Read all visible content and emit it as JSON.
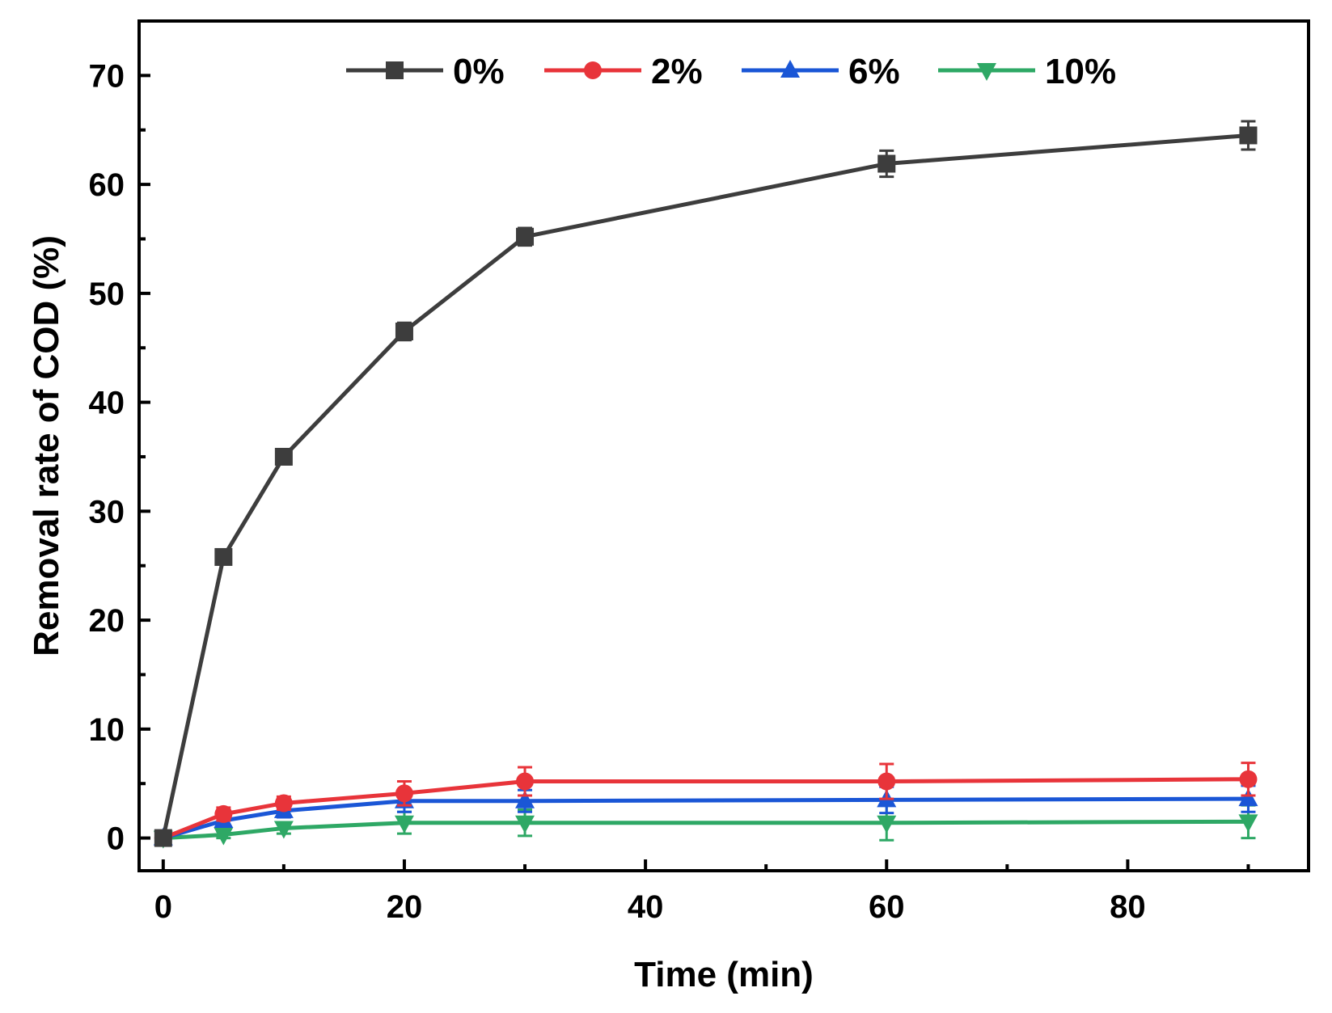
{
  "chart_data": {
    "type": "line",
    "title": "",
    "xlabel": "Time (min)",
    "ylabel": "Removal rate of COD (%)",
    "xlim": [
      -2,
      95
    ],
    "ylim": [
      -3,
      75
    ],
    "x_ticks": [
      0,
      20,
      40,
      60,
      80
    ],
    "y_ticks": [
      0,
      10,
      20,
      30,
      40,
      50,
      60,
      70
    ],
    "grid": false,
    "legend_position": "top",
    "x": [
      0,
      5,
      10,
      20,
      30,
      60,
      90
    ],
    "series": [
      {
        "name": "0%",
        "color": "#3d3d3d",
        "marker": "square",
        "values": [
          0,
          25.8,
          35.0,
          46.5,
          55.2,
          61.9,
          64.5
        ],
        "errors": [
          0.3,
          0.6,
          0.7,
          0.8,
          0.8,
          1.2,
          1.3
        ]
      },
      {
        "name": "2%",
        "color": "#e8343a",
        "marker": "circle",
        "values": [
          0,
          2.2,
          3.2,
          4.1,
          5.2,
          5.2,
          5.4
        ],
        "errors": [
          0.3,
          0.6,
          0.6,
          1.1,
          1.3,
          1.6,
          1.5
        ]
      },
      {
        "name": "6%",
        "color": "#1a56d6",
        "marker": "triangle-up",
        "values": [
          0,
          1.6,
          2.5,
          3.4,
          3.4,
          3.5,
          3.6
        ],
        "errors": [
          0.3,
          0.5,
          0.6,
          1.0,
          1.0,
          1.2,
          1.2
        ]
      },
      {
        "name": "10%",
        "color": "#2ea865",
        "marker": "triangle-down",
        "values": [
          0,
          0.3,
          0.9,
          1.4,
          1.4,
          1.4,
          1.5
        ],
        "errors": [
          0.3,
          0.3,
          0.5,
          1.0,
          1.2,
          1.6,
          1.5
        ]
      }
    ]
  }
}
